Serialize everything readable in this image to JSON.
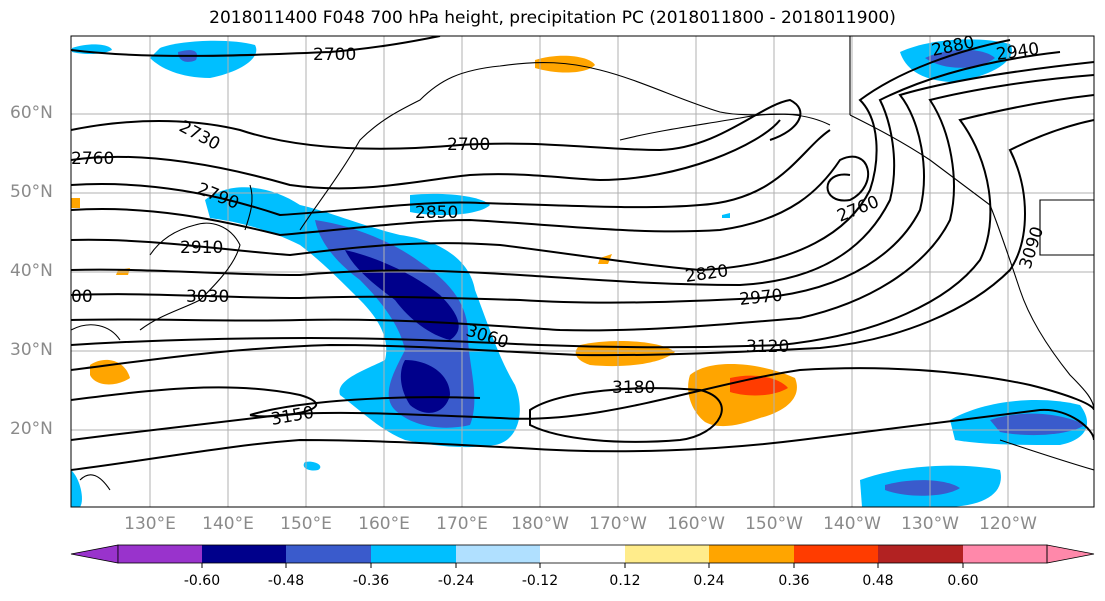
{
  "title": "2018011400 F048 700 hPa height, precipitation PC (2018011800 - 2018011900)",
  "lat_labels": [
    "60°N",
    "50°N",
    "40°N",
    "30°N",
    "20°N"
  ],
  "lon_labels": [
    "130°E",
    "140°E",
    "150°E",
    "160°E",
    "170°E",
    "180°W",
    "170°W",
    "160°W",
    "150°W",
    "140°W",
    "130°W",
    "120°W"
  ],
  "colorbar": {
    "colors": [
      "#9933cc",
      "#00008b",
      "#3a5bcc",
      "#00bfff",
      "#b0e0ff",
      "#ffffff",
      "#ffec8b",
      "#ffa500",
      "#ff3c00",
      "#b22222",
      "#ff88aa"
    ],
    "tick_labels": [
      "-0.60",
      "-0.48",
      "-0.36",
      "-0.24",
      "-0.12",
      "0.12",
      "0.24",
      "0.36",
      "0.48",
      "0.60"
    ]
  },
  "contour_labels": [
    "2700",
    "2700",
    "2730",
    "2760",
    "2790",
    "2850",
    "2880",
    "2940",
    "2760",
    "2910",
    "2820",
    "3090",
    "3030",
    "2970",
    "00",
    "3060",
    "3120",
    "3180",
    "3150"
  ]
}
